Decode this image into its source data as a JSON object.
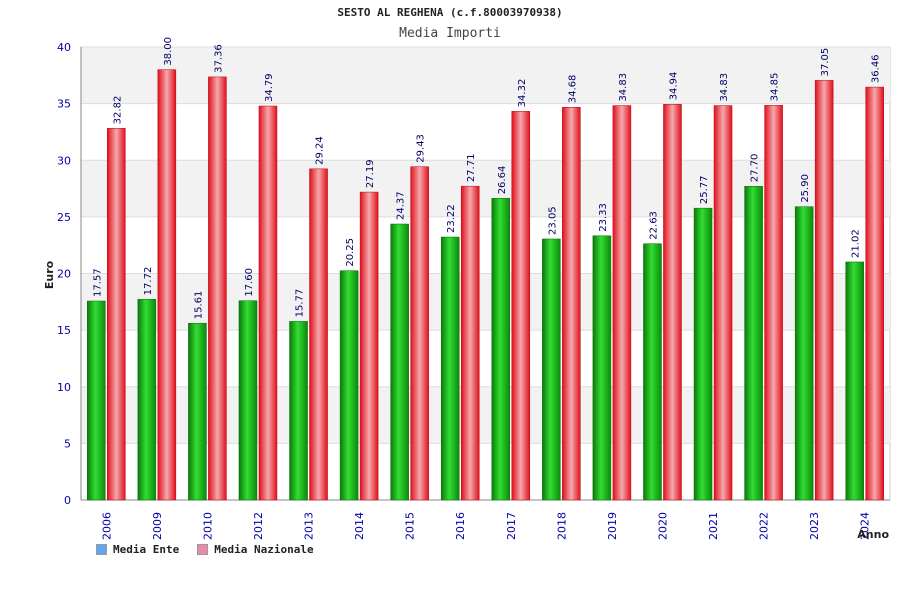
{
  "chart_data": {
    "type": "bar",
    "title": "SESTO AL REGHENA (c.f.80003970938)",
    "subtitle": "Media Importi",
    "xlabel": "Anno",
    "ylabel": "Euro",
    "ylim": [
      0,
      40
    ],
    "yticks": [
      0,
      5,
      10,
      15,
      20,
      25,
      30,
      35,
      40
    ],
    "grid": true,
    "legend_position": "bottom-left",
    "categories": [
      "2006",
      "2009",
      "2010",
      "2012",
      "2013",
      "2014",
      "2015",
      "2016",
      "2017",
      "2018",
      "2019",
      "2020",
      "2021",
      "2022",
      "2023",
      "2024"
    ],
    "series": [
      {
        "name": "Media Ente",
        "color": "#1fae1f",
        "values": [
          17.57,
          17.72,
          15.61,
          17.6,
          15.77,
          20.25,
          24.37,
          23.22,
          26.64,
          23.05,
          23.33,
          22.63,
          25.77,
          27.7,
          25.9,
          21.02
        ]
      },
      {
        "name": "Media Nazionale",
        "color": "#e8202a",
        "values": [
          32.82,
          38.0,
          37.36,
          34.79,
          29.24,
          27.19,
          29.43,
          27.71,
          34.32,
          34.68,
          34.83,
          34.94,
          34.83,
          34.85,
          37.05,
          36.46
        ]
      }
    ],
    "value_labels": [
      [
        "17.57",
        "17.72",
        "15.61",
        "17.60",
        "15.77",
        "20.25",
        "24.37",
        "23.22",
        "26.64",
        "23.05",
        "23.33",
        "22.63",
        "25.77",
        "27.70",
        "25.90",
        "21.02"
      ],
      [
        "32.82",
        "38.00",
        "37.36",
        "34.79",
        "29.24",
        "27.19",
        "29.43",
        "27.71",
        "34.32",
        "34.68",
        "34.83",
        "34.94",
        "34.83",
        "34.85",
        "37.05",
        "36.46"
      ]
    ],
    "legend_swatches": [
      "#5fa8f0",
      "#e88aa8"
    ]
  }
}
